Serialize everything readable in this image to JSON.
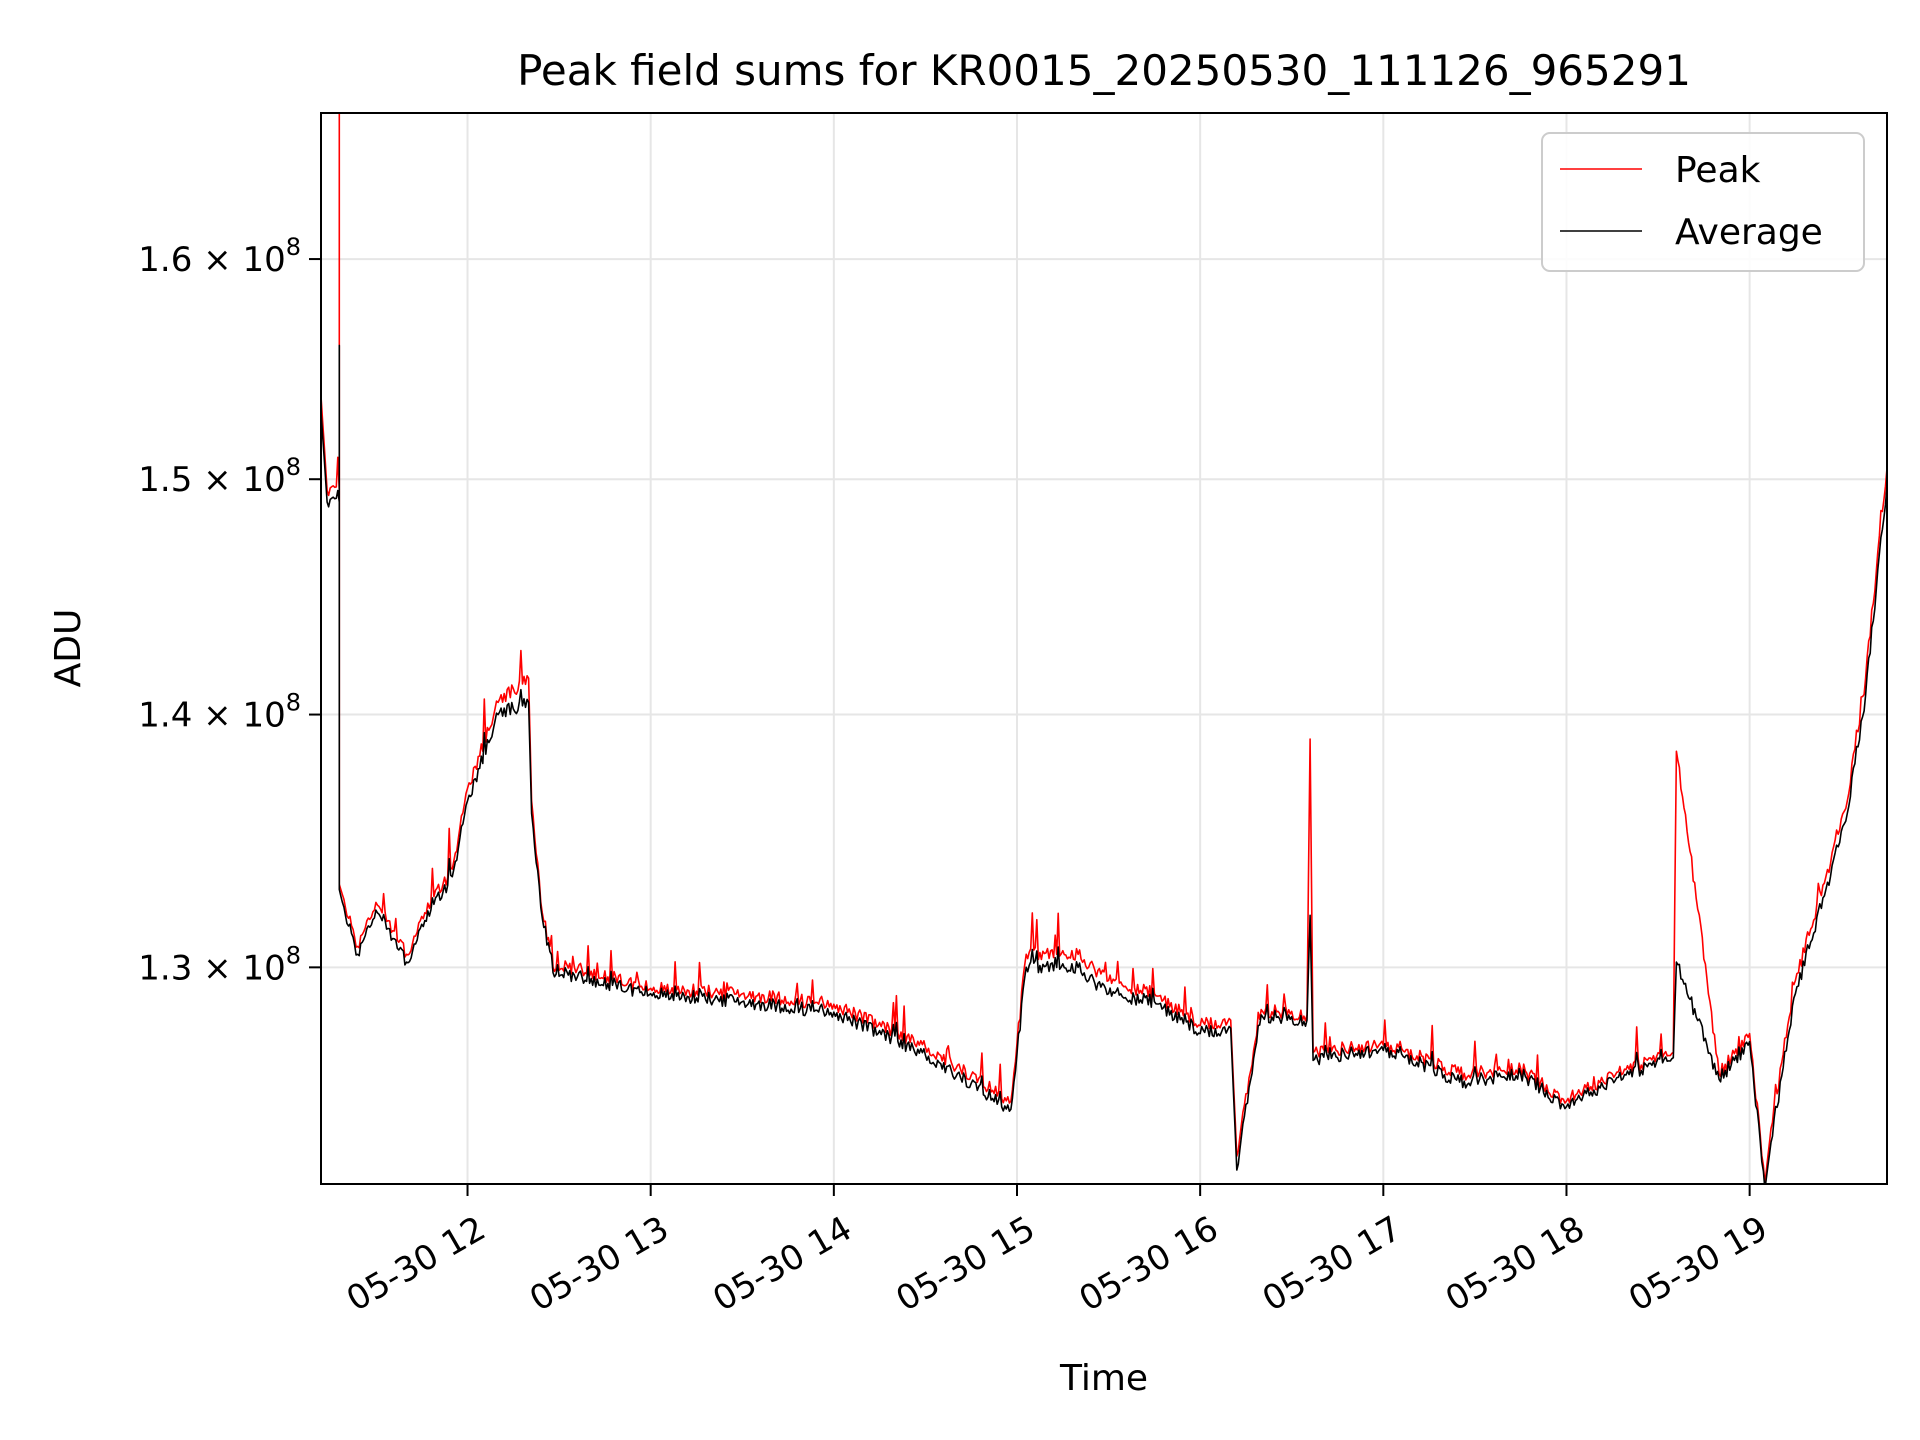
{
  "chart_data": {
    "type": "line",
    "title": "Peak field sums for KR0015_20250530_111126_965291",
    "xlabel": "Time",
    "ylabel": "ADU",
    "x_range": [
      "2025-05-30 11:12",
      "2025-05-30 19:45"
    ],
    "y_range": [
      122000000,
      167000000
    ],
    "y_scale": "log",
    "grid": true,
    "legend_position": "top-right",
    "x_ticks": [
      "05-30 12",
      "05-30 13",
      "05-30 14",
      "05-30 15",
      "05-30 16",
      "05-30 17",
      "05-30 18",
      "05-30 19"
    ],
    "y_ticks": [
      {
        "value": 130000000,
        "mantissa": "1.3",
        "base": "10",
        "exp": "8"
      },
      {
        "value": 140000000,
        "mantissa": "1.4",
        "base": "10",
        "exp": "8"
      },
      {
        "value": 150000000,
        "mantissa": "1.5",
        "base": "10",
        "exp": "8"
      },
      {
        "value": 160000000,
        "mantissa": "1.6",
        "base": "10",
        "exp": "8"
      }
    ],
    "series": [
      {
        "name": "Peak",
        "color": "#ff0000",
        "x": [
          "2025-05-30 11:12",
          "2025-05-30 11:14",
          "2025-05-30 11:18",
          "2025-05-30 11:18",
          "2025-05-30 11:18",
          "2025-05-30 11:19",
          "2025-05-30 11:24",
          "2025-05-30 11:30",
          "2025-05-30 11:40",
          "2025-05-30 11:48",
          "2025-05-30 11:55",
          "2025-05-30 12:00",
          "2025-05-30 12:10",
          "2025-05-30 12:20",
          "2025-05-30 12:21",
          "2025-05-30 12:24",
          "2025-05-30 12:28",
          "2025-05-30 12:35",
          "2025-05-30 13:00",
          "2025-05-30 13:30",
          "2025-05-30 14:00",
          "2025-05-30 14:30",
          "2025-05-30 14:58",
          "2025-05-30 15:03",
          "2025-05-30 15:20",
          "2025-05-30 15:30",
          "2025-05-30 15:45",
          "2025-05-30 16:00",
          "2025-05-30 16:10",
          "2025-05-30 16:12",
          "2025-05-30 16:20",
          "2025-05-30 16:35",
          "2025-05-30 16:36",
          "2025-05-30 16:37",
          "2025-05-30 16:50",
          "2025-05-30 17:05",
          "2025-05-30 17:25",
          "2025-05-30 17:45",
          "2025-05-30 18:00",
          "2025-05-30 18:15",
          "2025-05-30 18:35",
          "2025-05-30 18:36",
          "2025-05-30 18:50",
          "2025-05-30 19:00",
          "2025-05-30 19:05",
          "2025-05-30 19:07",
          "2025-05-30 19:15",
          "2025-05-30 19:25",
          "2025-05-30 19:32",
          "2025-05-30 19:38",
          "2025-05-30 19:45"
        ],
        "y": [
          153700000,
          149500000,
          149500000,
          167000000,
          133200000,
          132800000,
          130800000,
          132500000,
          130500000,
          132500000,
          133800000,
          137000000,
          140500000,
          141500000,
          136500000,
          132500000,
          130000000,
          130000000,
          129200000,
          129000000,
          128600000,
          127000000,
          125000000,
          130500000,
          130500000,
          129500000,
          129000000,
          127800000,
          128000000,
          123000000,
          128400000,
          128200000,
          139000000,
          126800000,
          127000000,
          127000000,
          126000000,
          126200000,
          125000000,
          126000000,
          126800000,
          138500000,
          126000000,
          127500000,
          122000000,
          124000000,
          129500000,
          133500000,
          136500000,
          141500000,
          150500000
        ]
      },
      {
        "name": "Average",
        "color": "#000000",
        "x": [
          "2025-05-30 11:12",
          "2025-05-30 11:14",
          "2025-05-30 11:18",
          "2025-05-30 11:18",
          "2025-05-30 11:18",
          "2025-05-30 11:19",
          "2025-05-30 11:24",
          "2025-05-30 11:30",
          "2025-05-30 11:40",
          "2025-05-30 11:48",
          "2025-05-30 11:55",
          "2025-05-30 12:00",
          "2025-05-30 12:10",
          "2025-05-30 12:20",
          "2025-05-30 12:21",
          "2025-05-30 12:24",
          "2025-05-30 12:28",
          "2025-05-30 12:35",
          "2025-05-30 13:00",
          "2025-05-30 13:30",
          "2025-05-30 14:00",
          "2025-05-30 14:30",
          "2025-05-30 14:58",
          "2025-05-30 15:03",
          "2025-05-30 15:20",
          "2025-05-30 15:30",
          "2025-05-30 15:45",
          "2025-05-30 16:00",
          "2025-05-30 16:10",
          "2025-05-30 16:12",
          "2025-05-30 16:20",
          "2025-05-30 16:35",
          "2025-05-30 16:36",
          "2025-05-30 16:37",
          "2025-05-30 16:50",
          "2025-05-30 17:05",
          "2025-05-30 17:25",
          "2025-05-30 17:45",
          "2025-05-30 18:00",
          "2025-05-30 18:15",
          "2025-05-30 18:35",
          "2025-05-30 18:36",
          "2025-05-30 18:50",
          "2025-05-30 19:00",
          "2025-05-30 19:05",
          "2025-05-30 19:07",
          "2025-05-30 19:15",
          "2025-05-30 19:25",
          "2025-05-30 19:32",
          "2025-05-30 19:38",
          "2025-05-30 19:45"
        ],
        "y": [
          153000000,
          149000000,
          149000000,
          156000000,
          133000000,
          132500000,
          130500000,
          132200000,
          130200000,
          132200000,
          133500000,
          136500000,
          140000000,
          140500000,
          136000000,
          132300000,
          129800000,
          129700000,
          129000000,
          128700000,
          128300000,
          126700000,
          124700000,
          130000000,
          130000000,
          129000000,
          128700000,
          127500000,
          127700000,
          122500000,
          128200000,
          128000000,
          132000000,
          126500000,
          126800000,
          126800000,
          125700000,
          126000000,
          124800000,
          125800000,
          126600000,
          130200000,
          125800000,
          127200000,
          121800000,
          123500000,
          129000000,
          133000000,
          136000000,
          140800000,
          149700000
        ]
      }
    ]
  }
}
